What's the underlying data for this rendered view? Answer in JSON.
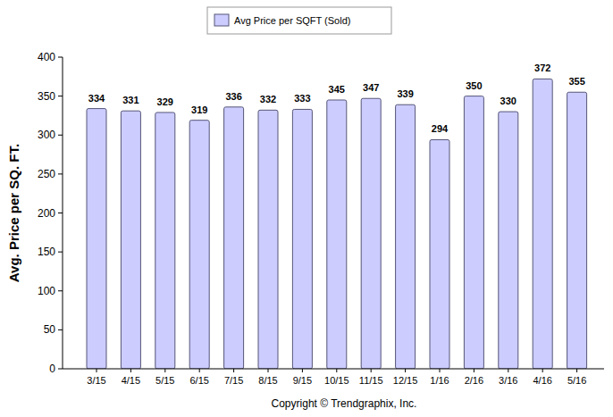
{
  "chart_data": {
    "type": "bar",
    "y_label": "Avg. Price per SQ. FT.",
    "annotations": [
      "Copyright © Trendgraphix, Inc."
    ],
    "categories": [
      "3/15",
      "4/15",
      "5/15",
      "6/15",
      "7/15",
      "8/15",
      "9/15",
      "10/15",
      "11/15",
      "12/15",
      "1/16",
      "2/16",
      "3/16",
      "4/16",
      "5/16"
    ],
    "series": [
      {
        "name": "Avg Price per SQFT (Sold)",
        "color": "#ccccff",
        "values": [
          334,
          331,
          329,
          319,
          336,
          332,
          333,
          345,
          347,
          339,
          294,
          350,
          330,
          372,
          355
        ]
      }
    ],
    "ylim": [
      0,
      400
    ],
    "yticks": [
      0,
      50,
      100,
      150,
      200,
      250,
      300,
      350,
      400
    ],
    "grid": false,
    "legend": "top",
    "data_labels": true
  }
}
